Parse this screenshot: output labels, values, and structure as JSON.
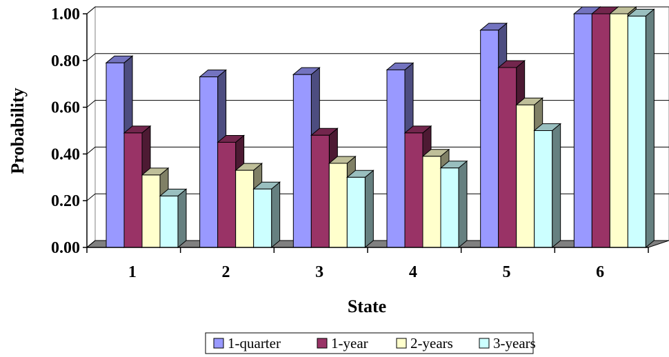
{
  "chart_data": {
    "type": "bar",
    "title": "",
    "xlabel": "State",
    "ylabel": "Probability",
    "categories": [
      "1",
      "2",
      "3",
      "4",
      "5",
      "6"
    ],
    "ylim": [
      0,
      1
    ],
    "yticks": [
      "0.00",
      "0.20",
      "0.40",
      "0.60",
      "0.80",
      "1.00"
    ],
    "grid": true,
    "legend_position": "bottom",
    "series": [
      {
        "name": "1-quarter",
        "values": [
          0.79,
          0.73,
          0.74,
          0.76,
          0.93,
          1.0
        ],
        "color": "#9999ff"
      },
      {
        "name": "1-year",
        "values": [
          0.49,
          0.45,
          0.48,
          0.49,
          0.77,
          1.0
        ],
        "color": "#993366"
      },
      {
        "name": "2-years",
        "values": [
          0.31,
          0.33,
          0.36,
          0.39,
          0.61,
          1.0
        ],
        "color": "#ffffcc"
      },
      {
        "name": "3-years",
        "values": [
          0.22,
          0.25,
          0.3,
          0.34,
          0.5,
          0.99
        ],
        "color": "#ccffff"
      }
    ]
  }
}
